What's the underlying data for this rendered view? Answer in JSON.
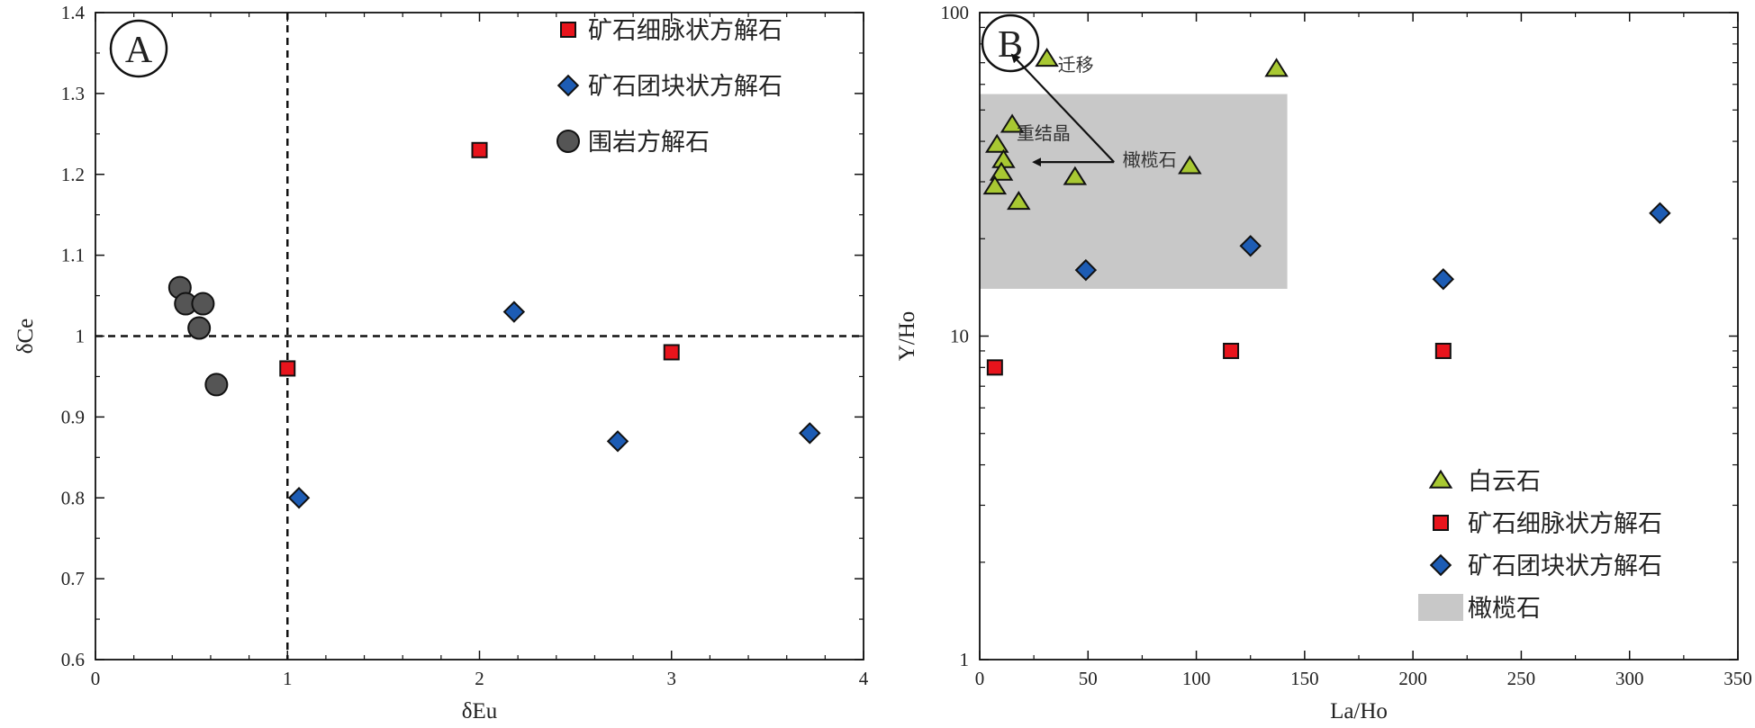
{
  "chart_data": [
    {
      "panel_label": "A",
      "type": "scatter",
      "xlabel": "δEu",
      "ylabel": "δCe",
      "xlim": [
        0,
        4
      ],
      "ylim": [
        0.6,
        1.4
      ],
      "xticks": [
        0,
        1,
        2,
        3,
        4
      ],
      "yticks": [
        0.6,
        0.7,
        0.8,
        0.9,
        1,
        1.1,
        1.2,
        1.3,
        1.4
      ],
      "grid": false,
      "legend_position": "top-right",
      "reference_lines": {
        "x": 1,
        "y": 1
      },
      "series": [
        {
          "name": "矿石细脉状方解石",
          "marker": "square",
          "color": "#e8141c",
          "points": [
            [
              1.0,
              0.96
            ],
            [
              2.0,
              1.23
            ],
            [
              3.0,
              0.98
            ]
          ]
        },
        {
          "name": "矿石团块状方解石",
          "marker": "diamond",
          "color": "#1d5cb4",
          "points": [
            [
              1.06,
              0.8
            ],
            [
              2.18,
              1.03
            ],
            [
              2.72,
              0.87
            ],
            [
              3.72,
              0.88
            ]
          ]
        },
        {
          "name": "围岩方解石",
          "marker": "circle",
          "color": "#555555",
          "points": [
            [
              0.44,
              1.06
            ],
            [
              0.47,
              1.04
            ],
            [
              0.56,
              1.04
            ],
            [
              0.54,
              1.01
            ],
            [
              0.63,
              0.94
            ]
          ]
        }
      ]
    },
    {
      "panel_label": "B",
      "type": "scatter",
      "xlabel": "La/Ho",
      "ylabel": "Y/Ho",
      "xlim": [
        0,
        350
      ],
      "ylim": [
        1,
        100
      ],
      "yscale": "log",
      "xticks": [
        0,
        50,
        100,
        150,
        200,
        250,
        300,
        350
      ],
      "yticks": [
        1,
        10,
        100
      ],
      "grid": false,
      "legend_position": "bottom-right",
      "region": {
        "name": "橄榄石",
        "x": [
          0,
          142
        ],
        "y": [
          14,
          56
        ],
        "color": "#c8c8c8"
      },
      "annotations": [
        {
          "text": "迁移"
        },
        {
          "text": "重结晶"
        },
        {
          "text": "橄榄石"
        }
      ],
      "series": [
        {
          "name": "白云石",
          "marker": "triangle",
          "color": "#a8c832",
          "points": [
            [
              31,
              72
            ],
            [
              137,
              67
            ],
            [
              15,
              45
            ],
            [
              8,
              39
            ],
            [
              11,
              35
            ],
            [
              10,
              32
            ],
            [
              7,
              29
            ],
            [
              44,
              31
            ],
            [
              97,
              33.5
            ],
            [
              18,
              26
            ]
          ]
        },
        {
          "name": "矿石细脉状方解石",
          "marker": "square",
          "color": "#e8141c",
          "points": [
            [
              7,
              8
            ],
            [
              116,
              9
            ],
            [
              214,
              9
            ]
          ]
        },
        {
          "name": "矿石团块状方解石",
          "marker": "diamond",
          "color": "#1d5cb4",
          "points": [
            [
              49,
              16
            ],
            [
              125,
              19
            ],
            [
              214,
              15
            ],
            [
              314,
              24
            ]
          ]
        },
        {
          "name": "橄榄石",
          "marker": "rect",
          "color": "#c8c8c8",
          "points": []
        }
      ]
    }
  ]
}
